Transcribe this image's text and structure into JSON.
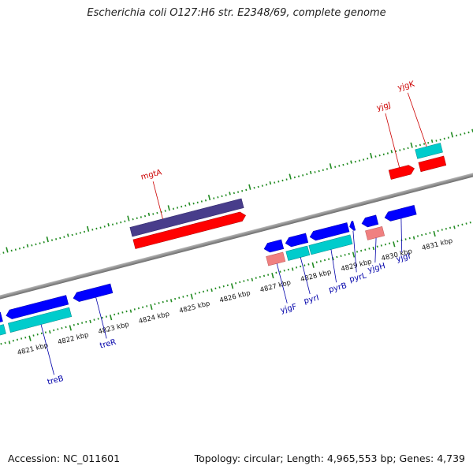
{
  "title": "Escherichia coli O127:H6 str. E2348/69, complete genome",
  "footer": {
    "accession": "Accession: NC_011601",
    "summary": "Topology: circular; Length: 4,965,553 bp; Genes: 4,739"
  },
  "colors": {
    "backbone": "#888888",
    "ticks": "#228b22",
    "forward_cds": "#ff0000",
    "forward_gene_band": "#483d8b",
    "reverse_cds": "#0000ff",
    "reverse_gene_band": "#00cccc",
    "rna_pseudo": "#f08080",
    "label_top": "#cc0000",
    "label_bottom": "#0000aa"
  },
  "kbp_ticks": [
    "4821 kbp",
    "4822 kbp",
    "4823 kbp",
    "4824 kbp",
    "4825 kbp",
    "4826 kbp",
    "4827 kbp",
    "4828 kbp",
    "4829 kbp",
    "4830 kbp",
    "4831 kbp"
  ],
  "gene_labels_top": [
    "mgtA",
    "yjgJ",
    "yjgK"
  ],
  "gene_labels_bottom": [
    "treB",
    "treR",
    "yjgF",
    "pyrI",
    "pyrB",
    "pyrL",
    "yjgH",
    "yjgI"
  ]
}
